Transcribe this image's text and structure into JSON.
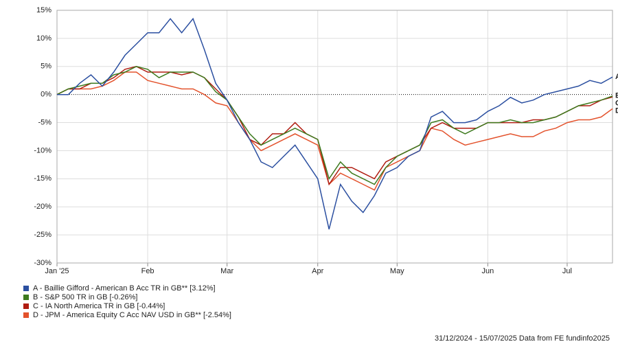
{
  "chart_data": {
    "type": "line",
    "categories": [
      "Jan '25",
      null,
      null,
      null,
      null,
      null,
      null,
      null,
      "Feb",
      null,
      null,
      null,
      null,
      null,
      null,
      "Mar",
      null,
      null,
      null,
      null,
      null,
      null,
      null,
      "Apr",
      null,
      null,
      null,
      null,
      null,
      null,
      "May",
      null,
      null,
      null,
      null,
      null,
      null,
      null,
      "Jun",
      null,
      null,
      null,
      null,
      null,
      null,
      "Jul",
      null,
      null,
      null,
      null
    ],
    "ylim": [
      -30,
      15
    ],
    "yticks": [
      {
        "value": -30,
        "label": "-30%"
      },
      {
        "value": -25,
        "label": "-25%"
      },
      {
        "value": -20,
        "label": "-20%"
      },
      {
        "value": -15,
        "label": "-15%"
      },
      {
        "value": -10,
        "label": "-10%"
      },
      {
        "value": -5,
        "label": "-5%"
      },
      {
        "value": 0,
        "label": "0%"
      },
      {
        "value": 5,
        "label": "5%"
      },
      {
        "value": 10,
        "label": "10%"
      },
      {
        "value": 15,
        "label": "15%"
      }
    ],
    "grid": true,
    "series": [
      {
        "name": "A - Baillie Gifford - American B Acc TR in GB** [3.12%]",
        "tag": "A",
        "color": "#2b4fa0",
        "values": [
          0,
          0,
          2,
          3.5,
          1.5,
          4,
          7,
          9,
          11,
          11,
          13.5,
          11,
          13.5,
          8,
          2,
          -1,
          -5,
          -8,
          -12,
          -13,
          -11,
          -9,
          -12,
          -15,
          -24,
          -16,
          -19,
          -21,
          -18,
          -14,
          -13,
          -11,
          -10,
          -4,
          -3,
          -5,
          -5,
          -4.5,
          -3,
          -2,
          -0.5,
          -1.5,
          -1,
          0,
          0.5,
          1,
          1.5,
          2.5,
          2,
          3.12
        ]
      },
      {
        "name": "B - S&P 500 TR in GB [-0.26%]",
        "tag": "B",
        "color": "#3d7a1e",
        "values": [
          0,
          1,
          1.5,
          2,
          2,
          3.5,
          4,
          5,
          4.5,
          3,
          4,
          4,
          4,
          3,
          0.5,
          -1,
          -4,
          -7,
          -9,
          -8,
          -7,
          -6,
          -7,
          -8,
          -15,
          -12,
          -14,
          -15,
          -16,
          -13,
          -11,
          -10,
          -9,
          -5,
          -4.5,
          -6,
          -7,
          -6,
          -5,
          -5,
          -4.5,
          -5,
          -5,
          -4.5,
          -4,
          -3,
          -2,
          -1.5,
          -1,
          -0.26
        ]
      },
      {
        "name": "C - IA North America TR in GB [-0.44%]",
        "tag": "C",
        "color": "#b01c10",
        "values": [
          0,
          1,
          1,
          2,
          2,
          3,
          4.5,
          5,
          4,
          4,
          4,
          3.5,
          4,
          3,
          1,
          -1,
          -4,
          -8,
          -9,
          -7,
          -7,
          -5,
          -7,
          -8,
          -16,
          -13,
          -13,
          -14,
          -15,
          -12,
          -11,
          -10,
          -9,
          -6,
          -5,
          -6,
          -6,
          -6,
          -5,
          -5,
          -5,
          -5,
          -4.5,
          -4.5,
          -4,
          -3,
          -2,
          -2,
          -1,
          -0.44
        ]
      },
      {
        "name": "D - JPM - America Equity C Acc NAV USD in GB** [-2.54%]",
        "tag": "D",
        "color": "#e3522c",
        "values": [
          0,
          1,
          1,
          1,
          1.5,
          2.5,
          4,
          4,
          2.5,
          2,
          1.5,
          1,
          1,
          0,
          -1.5,
          -2,
          -5,
          -8,
          -10,
          -9,
          -8,
          -7,
          -8,
          -9,
          -16,
          -14,
          -15,
          -16,
          -17,
          -13,
          -12,
          -11,
          -10,
          -6,
          -6.5,
          -8,
          -9,
          -8.5,
          -8,
          -7.5,
          -7,
          -7.5,
          -7.5,
          -6.5,
          -6,
          -5,
          -4.5,
          -4.5,
          -4,
          -2.54
        ]
      }
    ],
    "footer": "31/12/2024 - 15/07/2025 Data from FE fundinfo2025"
  }
}
